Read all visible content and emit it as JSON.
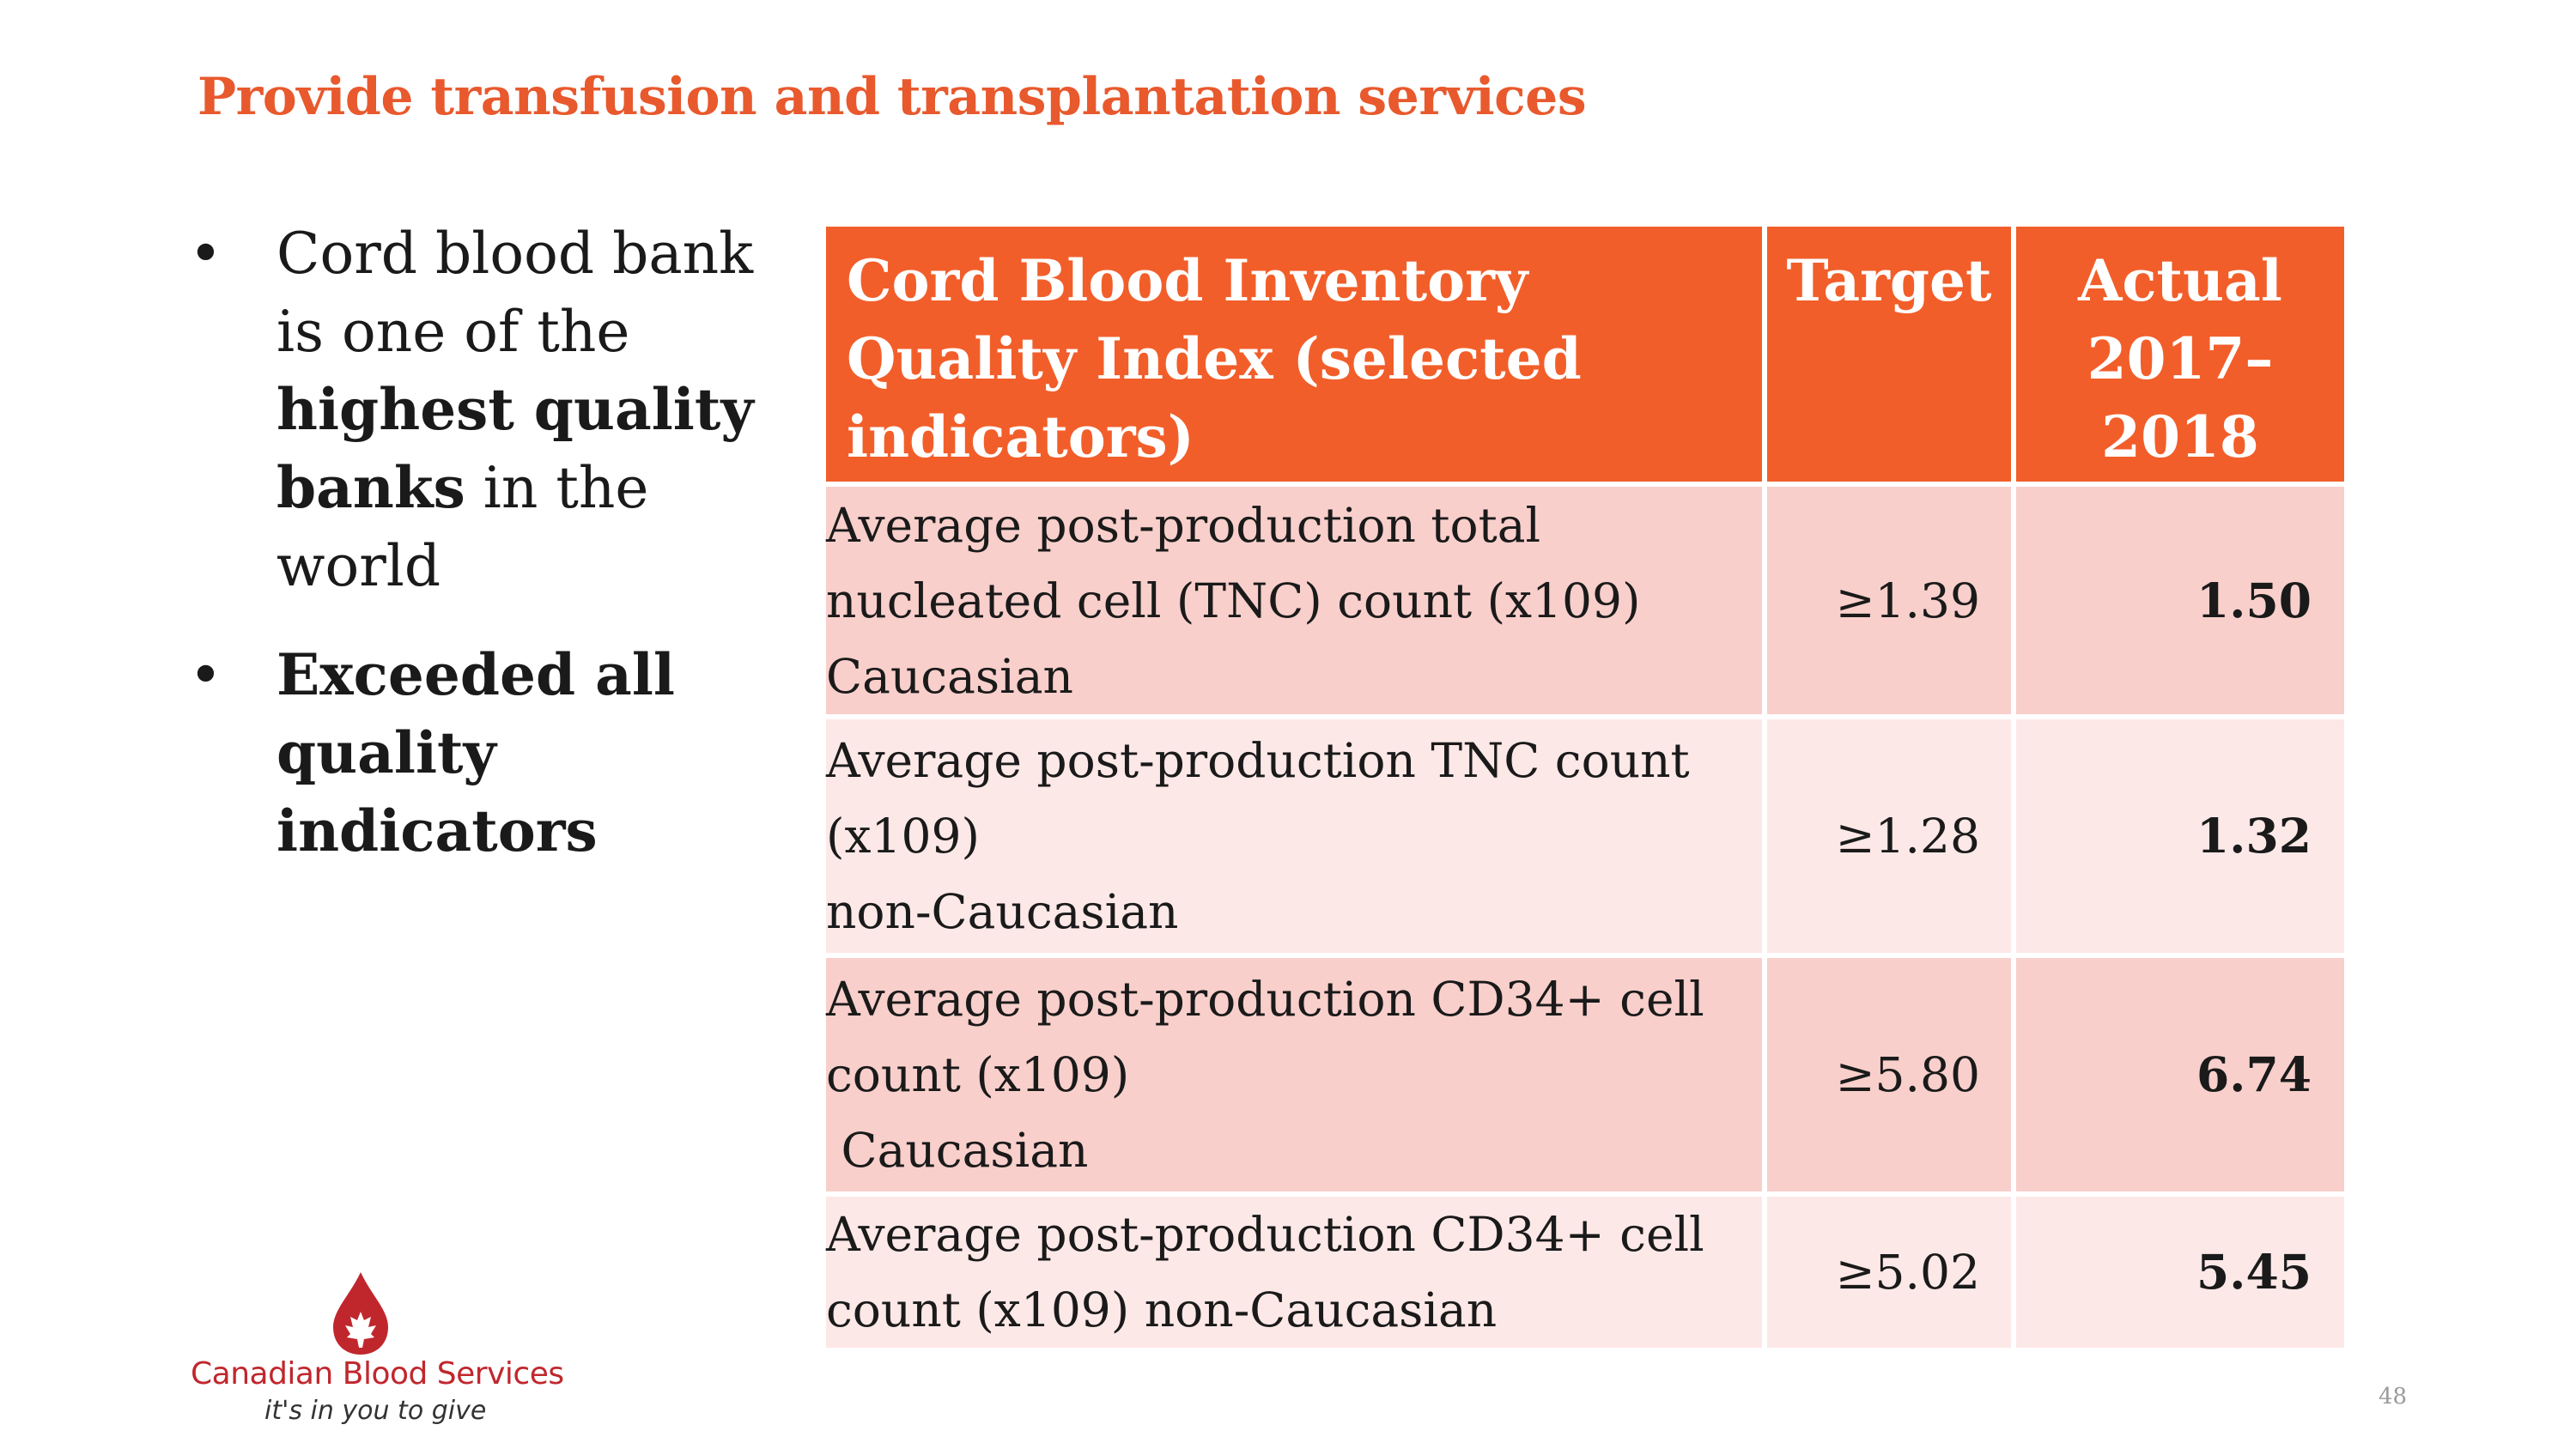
{
  "slide": {
    "title": "Provide transfusion and transplantation services",
    "page_number": "48"
  },
  "bullets": {
    "marker": "•",
    "b1": {
      "part1": "Cord blood bank is one of the ",
      "bold": "highest quality banks",
      "part2": " in the world"
    },
    "b2": {
      "bold": "Exceeded all quality indicators"
    }
  },
  "table": {
    "headers": {
      "indicator": "Cord Blood Inventory Quality Index (selected indicators)",
      "target": "Target",
      "actual": "Actual 2017–2018"
    },
    "rows": [
      {
        "indicator_lines": [
          "Average post-production total",
          "nucleated cell (TNC) count (x109)",
          "Caucasian"
        ],
        "target": "≥1.39",
        "actual": "1.50"
      },
      {
        "indicator_lines": [
          "Average post-production TNC count",
          "(x109)",
          "non-Caucasian"
        ],
        "target": "≥1.28",
        "actual": "1.32"
      },
      {
        "indicator_lines": [
          "Average post-production CD34+ cell",
          "count (x109)",
          " Caucasian"
        ],
        "target": "≥5.80",
        "actual": "6.74"
      },
      {
        "indicator_lines": [
          "Average post-production CD34+ cell",
          "count (x109) non-Caucasian"
        ],
        "target": "≥5.02",
        "actual": "5.45"
      }
    ]
  },
  "logo": {
    "name": "Canadian Blood Services",
    "tagline": "it's in you to give",
    "icon": "blood-drop-maple-leaf-icon"
  },
  "colors": {
    "accent": "#e8592d",
    "header_fill": "#f25e2a",
    "row_dark": "#f8cfcb",
    "row_light": "#fce8e7",
    "logo_red": "#c0272d"
  }
}
